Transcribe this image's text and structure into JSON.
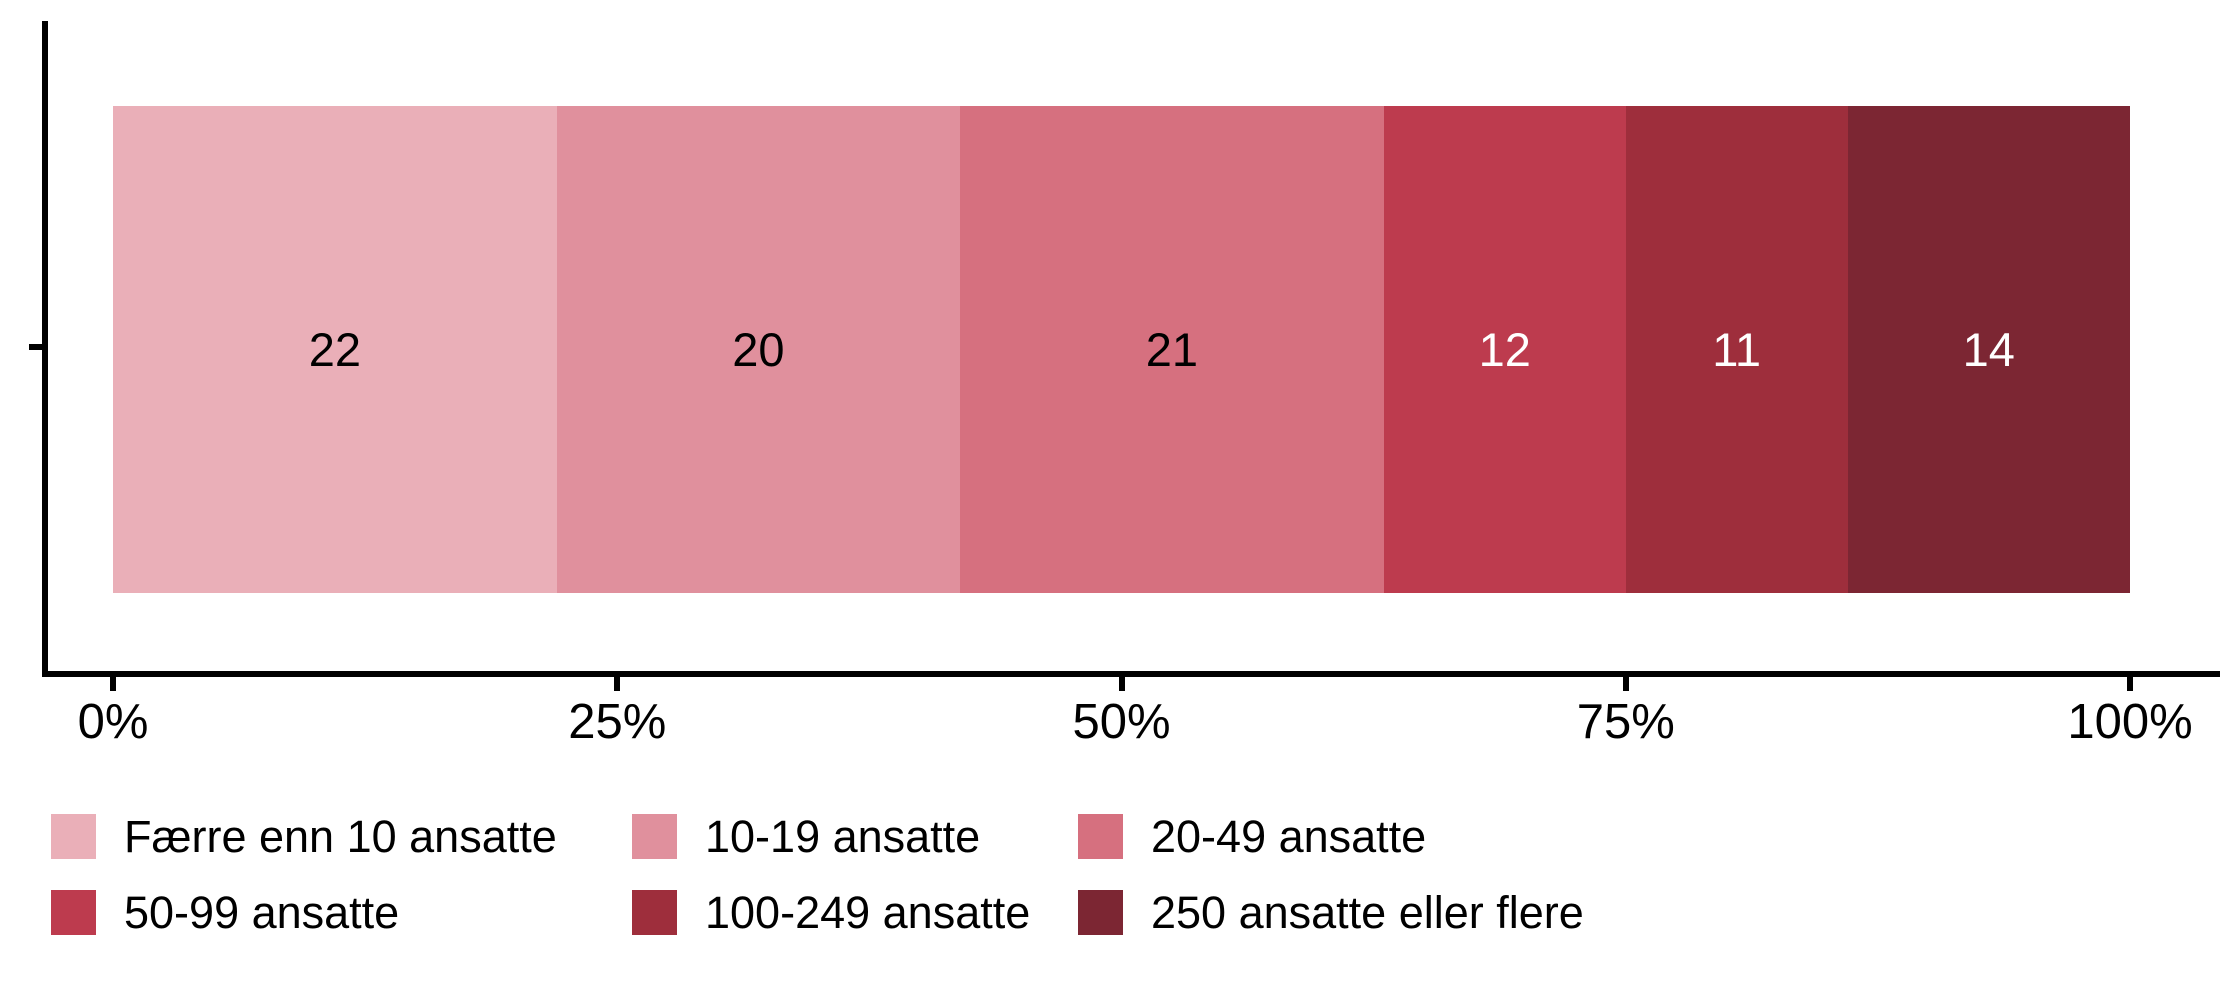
{
  "chart_data": {
    "type": "bar",
    "variant": "horizontal-stacked",
    "title": "",
    "categories": [
      ""
    ],
    "series": [
      {
        "name": "Færre enn 10 ansatte",
        "value": 22,
        "color": "#EAAFB8",
        "value_label_color": "#000000"
      },
      {
        "name": "10-19 ansatte",
        "value": 20,
        "color": "#E0909D",
        "value_label_color": "#000000"
      },
      {
        "name": "20-49 ansatte",
        "value": 21,
        "color": "#D6707F",
        "value_label_color": "#000000"
      },
      {
        "name": "50-99 ansatte",
        "value": 12,
        "color": "#BD3B4E",
        "value_label_color": "#FFFFFF"
      },
      {
        "name": "100-249 ansatte",
        "value": 11,
        "color": "#9E2E3C",
        "value_label_color": "#FFFFFF"
      },
      {
        "name": "250 ansatte eller flere",
        "value": 14,
        "color": "#7C2633",
        "value_label_color": "#FFFFFF"
      }
    ],
    "x_axis": {
      "range": [
        0,
        100
      ],
      "unit": "%",
      "ticks": [
        {
          "label": "0%",
          "value": 0
        },
        {
          "label": "25%",
          "value": 25
        },
        {
          "label": "50%",
          "value": 50
        },
        {
          "label": "75%",
          "value": 75
        },
        {
          "label": "100%",
          "value": 100
        }
      ]
    },
    "legend": {
      "position": "bottom-left",
      "rows": 2,
      "columns": 3
    },
    "grid": "off",
    "axis_color": "#000000",
    "text_color": "#000000",
    "background": "#FFFFFF"
  }
}
